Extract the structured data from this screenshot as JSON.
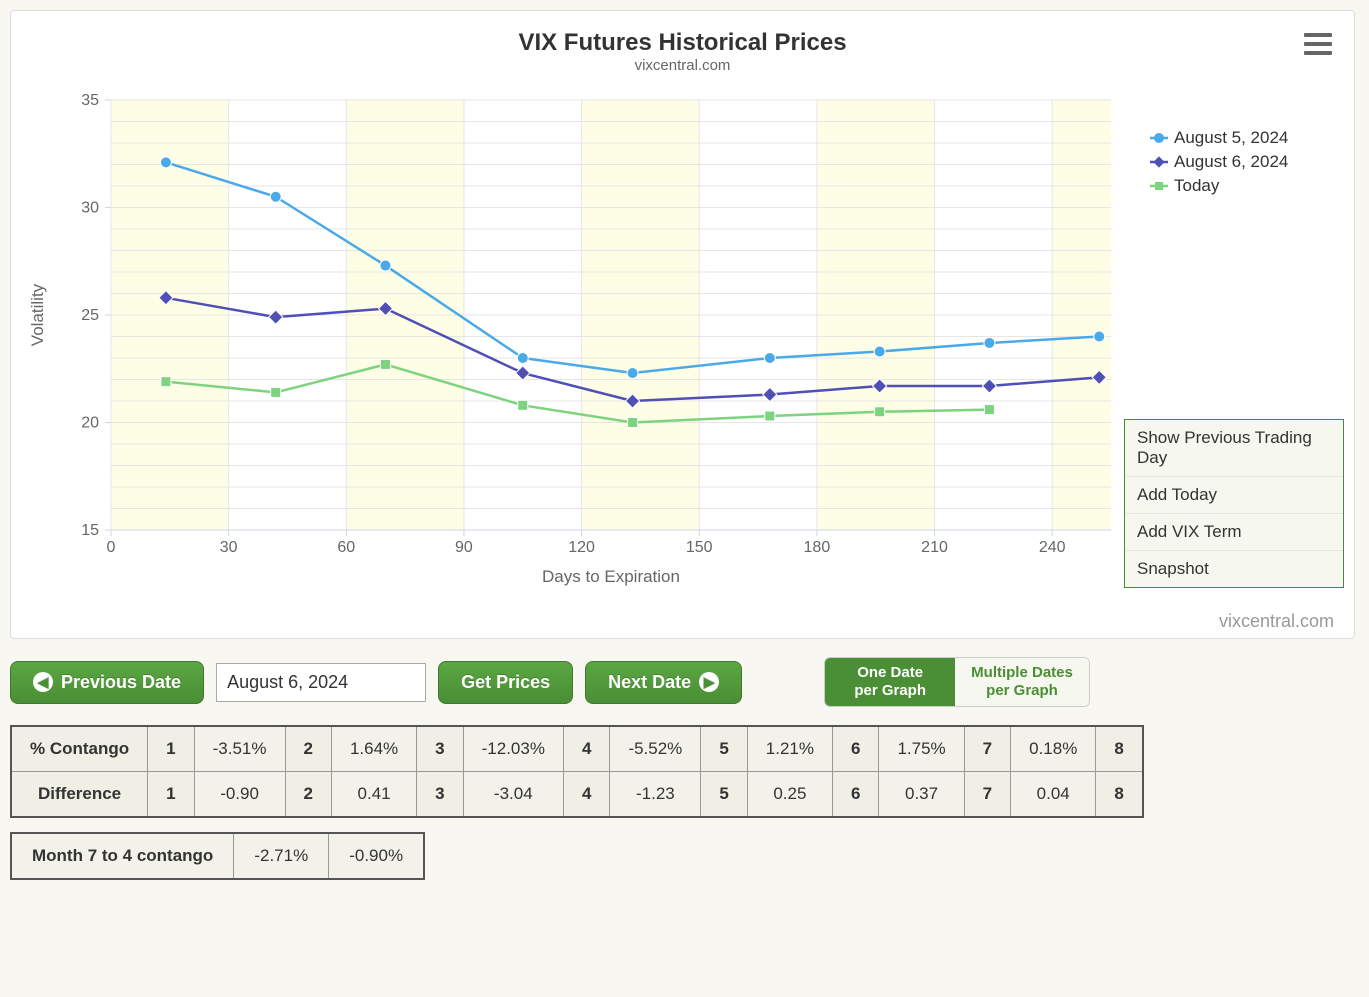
{
  "chart": {
    "type": "line",
    "title": "VIX Futures Historical Prices",
    "subtitle": "vixcentral.com",
    "x_axis": {
      "title": "Days to Expiration",
      "min": 0,
      "max": 255,
      "ticks": [
        0,
        30,
        60,
        90,
        120,
        150,
        180,
        210,
        240
      ],
      "title_fontsize": 17,
      "label_fontsize": 16
    },
    "y_axis": {
      "title": "Volatility",
      "min": 15,
      "max": 35,
      "ticks": [
        15,
        20,
        25,
        30,
        35
      ],
      "title_fontsize": 17,
      "label_fontsize": 16
    },
    "plot_background": "#ffffff",
    "grid_color": "#e6e6e6",
    "band_color": "#fdfbd5",
    "band_opacity": 0.6,
    "series": [
      {
        "name": "August 5, 2024",
        "color": "#4aa9e9",
        "marker": "circle",
        "line_width": 2.5,
        "x": [
          14,
          42,
          70,
          105,
          133,
          168,
          196,
          224,
          252
        ],
        "y": [
          32.1,
          30.5,
          27.3,
          23.0,
          22.3,
          23.0,
          23.3,
          23.7,
          24.0
        ]
      },
      {
        "name": "August 6, 2024",
        "color": "#4f4fb5",
        "marker": "diamond",
        "line_width": 2.5,
        "x": [
          14,
          42,
          70,
          105,
          133,
          168,
          196,
          224,
          252
        ],
        "y": [
          25.8,
          24.9,
          25.3,
          22.3,
          21.0,
          21.3,
          21.7,
          21.7,
          22.1
        ]
      },
      {
        "name": "Today",
        "color": "#7ed37e",
        "marker": "square",
        "line_width": 2.5,
        "x": [
          14,
          42,
          70,
          105,
          133,
          168,
          196,
          224
        ],
        "y": [
          21.9,
          21.4,
          22.7,
          20.8,
          20.0,
          20.3,
          20.5,
          20.6
        ]
      }
    ],
    "side_menu": [
      "Show Previous Trading Day",
      "Add Today",
      "Add VIX Term Snapshot"
    ],
    "credits": "vixcentral.com"
  },
  "controls": {
    "prev_label": "Previous Date",
    "date_value": "August 6, 2024",
    "get_label": "Get Prices",
    "next_label": "Next Date",
    "toggle_one": "One Date per Graph",
    "toggle_multi": "Multiple Dates per Graph"
  },
  "table1": {
    "rows": [
      {
        "label": "% Contango",
        "cells": [
          "1",
          "-3.51%",
          "2",
          "1.64%",
          "3",
          "-12.03%",
          "4",
          "-5.52%",
          "5",
          "1.21%",
          "6",
          "1.75%",
          "7",
          "0.18%",
          "8"
        ]
      },
      {
        "label": "Difference",
        "cells": [
          "1",
          "-0.90",
          "2",
          "0.41",
          "3",
          "-3.04",
          "4",
          "-1.23",
          "5",
          "0.25",
          "6",
          "0.37",
          "7",
          "0.04",
          "8"
        ]
      }
    ]
  },
  "table2": {
    "label": "Month 7 to 4 contango",
    "cells": [
      "-2.71%",
      "-0.90%"
    ]
  }
}
